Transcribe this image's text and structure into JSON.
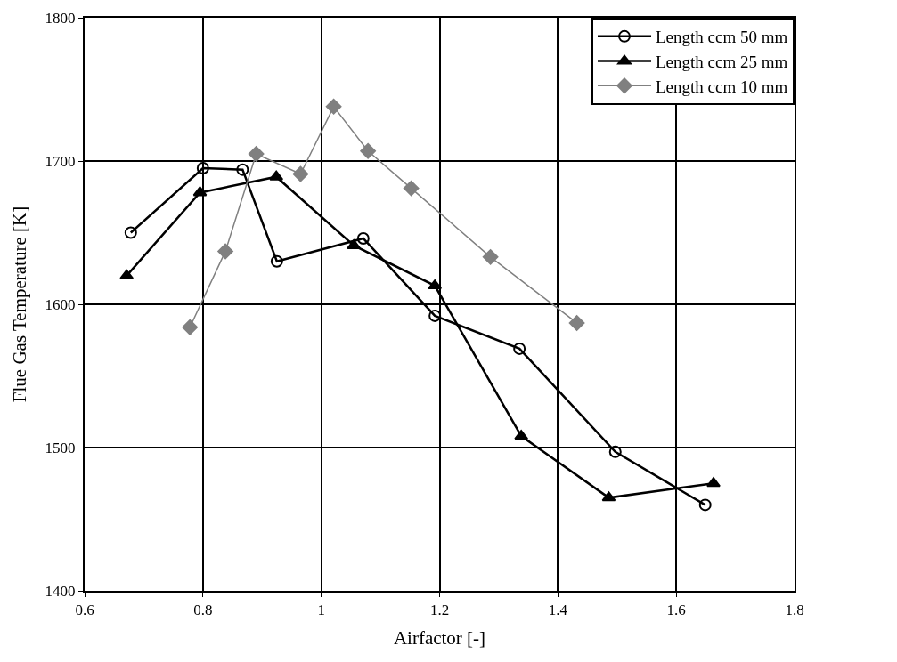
{
  "chart_data": {
    "type": "line",
    "xlabel": "Airfactor [-]",
    "ylabel": "Flue Gas Temperature [K]",
    "xlim": [
      0.6,
      1.8
    ],
    "xticks": [
      0.6,
      0.8,
      1,
      1.2,
      1.4,
      1.6,
      1.8
    ],
    "ylim": [
      1400,
      1800
    ],
    "yticks": [
      1400,
      1500,
      1600,
      1700,
      1800
    ],
    "grid": true,
    "legend": "top right",
    "series": [
      {
        "name": "Length ccm 50 mm",
        "color": "#000000",
        "marker": "circle",
        "x": [
          0.678,
          0.8,
          0.867,
          0.925,
          1.071,
          1.192,
          1.335,
          1.497,
          1.649
        ],
        "values": [
          1650,
          1695,
          1694,
          1630,
          1646,
          1592,
          1569,
          1497,
          1460
        ]
      },
      {
        "name": "Length ccm 25 mm",
        "color": "#000000",
        "marker": "triangle",
        "x": [
          0.671,
          0.795,
          0.924,
          1.055,
          1.192,
          1.338,
          1.486,
          1.663
        ],
        "values": [
          1620,
          1678,
          1689,
          1641,
          1613,
          1508,
          1465,
          1475
        ]
      },
      {
        "name": "Length ccm 10 mm",
        "color": "#808080",
        "marker": "diamond",
        "x": [
          0.778,
          0.838,
          0.89,
          0.965,
          1.021,
          1.079,
          1.152,
          1.286,
          1.432
        ],
        "values": [
          1584,
          1637,
          1705,
          1691,
          1738,
          1707,
          1681,
          1633,
          1587
        ]
      }
    ]
  }
}
